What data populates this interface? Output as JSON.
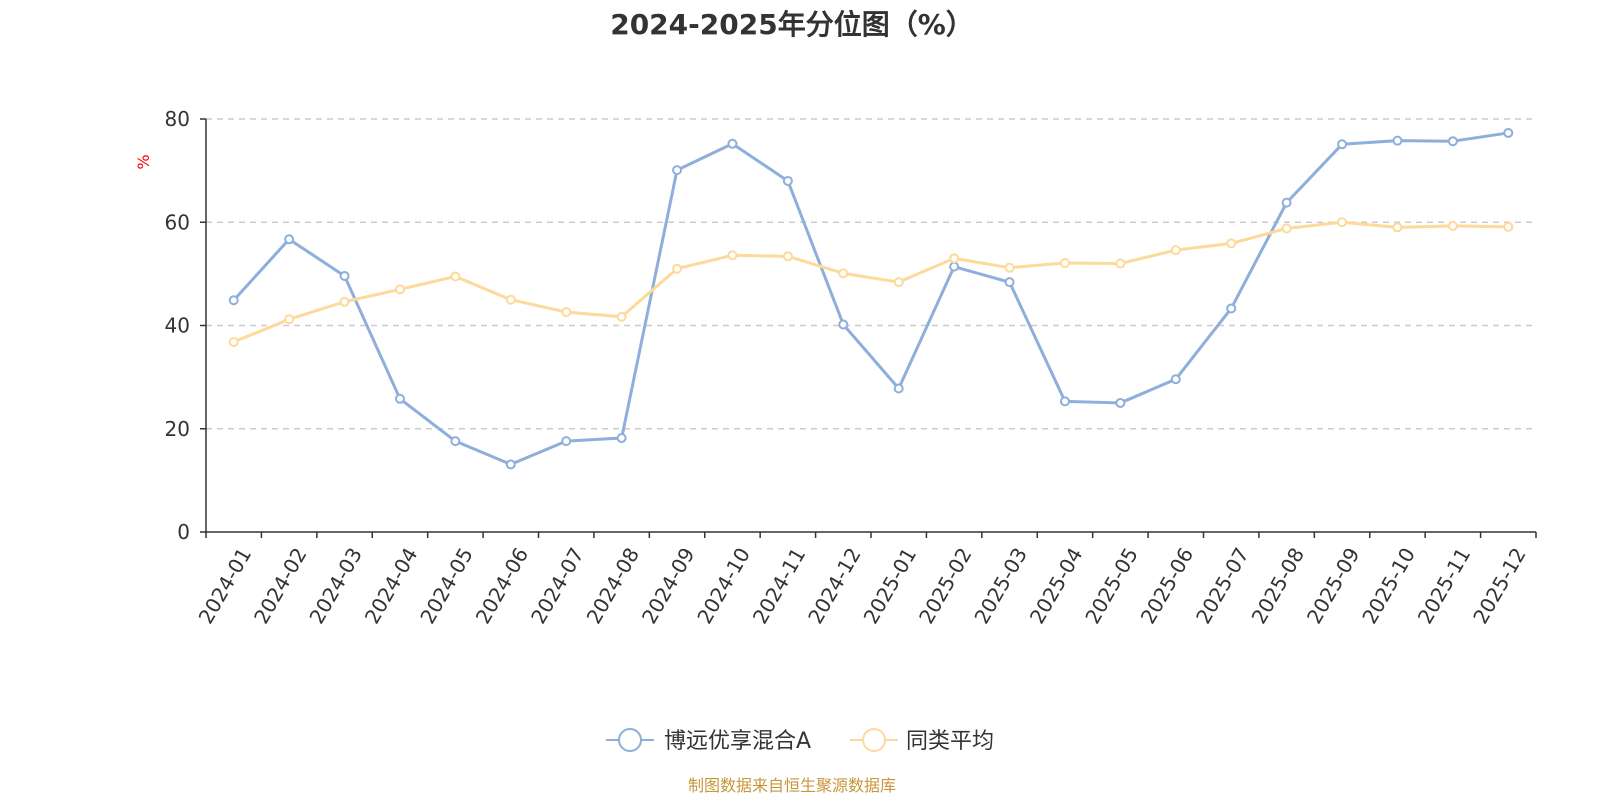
{
  "chart_data": {
    "type": "line",
    "title": "2024-2025年分位图（%）",
    "ylabel": "%",
    "ylim": [
      0,
      80
    ],
    "yticks": [
      0,
      20,
      40,
      60,
      80
    ],
    "grid": true,
    "legend_position": "bottom",
    "categories": [
      "2024-01",
      "2024-02",
      "2024-03",
      "2024-04",
      "2024-05",
      "2024-06",
      "2024-07",
      "2024-08",
      "2024-09",
      "2024-10",
      "2024-11",
      "2024-12",
      "2025-01",
      "2025-02",
      "2025-03",
      "2025-04",
      "2025-05",
      "2025-06",
      "2025-07",
      "2025-08",
      "2025-09",
      "2025-10",
      "2025-11",
      "2025-12"
    ],
    "series": [
      {
        "name": "博远优享混合A",
        "color": "#8eaedb",
        "values": [
          44.9,
          56.7,
          49.6,
          25.8,
          17.6,
          13.1,
          17.6,
          18.2,
          70.1,
          75.2,
          68.0,
          40.2,
          27.8,
          51.4,
          48.4,
          25.3,
          25.0,
          29.6,
          43.3,
          63.8,
          75.1,
          75.8,
          75.7,
          77.3
        ]
      },
      {
        "name": "同类平均",
        "color": "#fdd99a",
        "values": [
          36.8,
          41.2,
          44.6,
          47.0,
          49.5,
          45.0,
          42.6,
          41.7,
          51.0,
          53.6,
          53.4,
          50.1,
          48.4,
          53.0,
          51.2,
          52.1,
          52.0,
          54.6,
          55.9,
          58.8,
          60.0,
          59.0,
          59.3,
          59.1
        ]
      }
    ]
  },
  "source_text": "制图数据来自恒生聚源数据库"
}
